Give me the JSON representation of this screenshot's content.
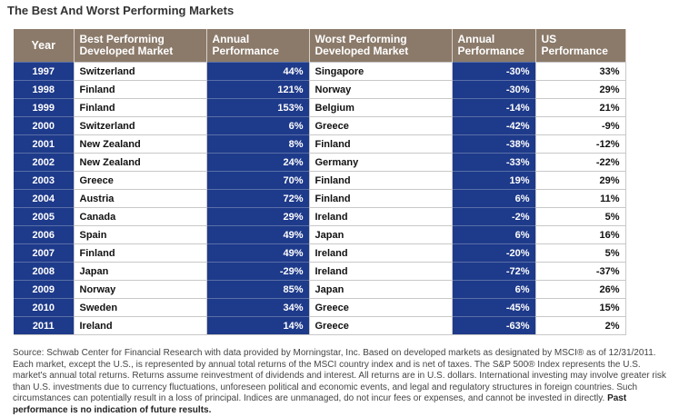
{
  "title": "The Best And Worst Performing Markets",
  "headers": {
    "year": "Year",
    "best_market": [
      "Best Performing",
      "Developed Market"
    ],
    "best_perf": [
      "Annual",
      "Performance"
    ],
    "worst_market": [
      "Worst Performing",
      "Developed Market"
    ],
    "worst_perf": [
      "Annual",
      "Performance"
    ],
    "us_perf": [
      "US",
      "Performance"
    ]
  },
  "chart_data": {
    "type": "table",
    "columns": [
      "Year",
      "Best Performing Developed Market",
      "Annual Performance",
      "Worst Performing Developed Market",
      "Annual Performance",
      "US Performance"
    ],
    "rows": [
      [
        "1997",
        "Switzerland",
        "44%",
        "Singapore",
        "-30%",
        "33%"
      ],
      [
        "1998",
        "Finland",
        "121%",
        "Norway",
        "-30%",
        "29%"
      ],
      [
        "1999",
        "Finland",
        "153%",
        "Belgium",
        "-14%",
        "21%"
      ],
      [
        "2000",
        "Switzerland",
        "6%",
        "Greece",
        "-42%",
        "-9%"
      ],
      [
        "2001",
        "New Zealand",
        "8%",
        "Finland",
        "-38%",
        "-12%"
      ],
      [
        "2002",
        "New Zealand",
        "24%",
        "Germany",
        "-33%",
        "-22%"
      ],
      [
        "2003",
        "Greece",
        "70%",
        "Finland",
        "19%",
        "29%"
      ],
      [
        "2004",
        "Austria",
        "72%",
        "Finland",
        "6%",
        "11%"
      ],
      [
        "2005",
        "Canada",
        "29%",
        "Ireland",
        "-2%",
        "5%"
      ],
      [
        "2006",
        "Spain",
        "49%",
        "Japan",
        "6%",
        "16%"
      ],
      [
        "2007",
        "Finland",
        "49%",
        "Ireland",
        "-20%",
        "5%"
      ],
      [
        "2008",
        "Japan",
        "-29%",
        "Ireland",
        "-72%",
        "-37%"
      ],
      [
        "2009",
        "Norway",
        "85%",
        "Japan",
        "6%",
        "26%"
      ],
      [
        "2010",
        "Sweden",
        "34%",
        "Greece",
        "-45%",
        "15%"
      ],
      [
        "2011",
        "Ireland",
        "14%",
        "Greece",
        "-63%",
        "2%"
      ]
    ]
  },
  "footnote": {
    "text": "Source: Schwab Center for Financial Research with data provided by Morningstar, Inc. Based on developed markets as designated by MSCI® as of 12/31/2011. Each market, except the U.S., is represented by annual total returns of the MSCI country index and is net of taxes. The S&P 500® Index represents the U.S. market's annual total returns. Returns assume reinvestment of dividends and interest. All returns are in U.S. dollars. International investing may involve greater risk than U.S. investments due to currency fluctuations, unforeseen political and economic events, and legal and regulatory structures in foreign countries. Such circumstances can potentially result in a loss of principal. Indices are unmanaged, do not incur fees or expenses, and cannot be invested in directly.",
    "emphasis": "Past performance is no indication of future results."
  }
}
